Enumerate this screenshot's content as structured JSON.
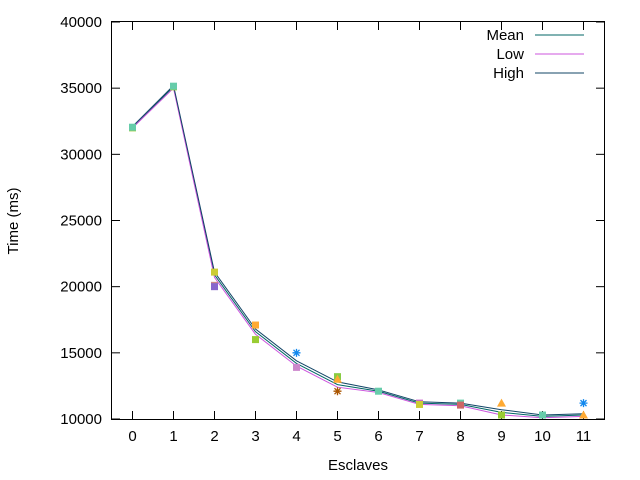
{
  "chart_data": {
    "type": "line",
    "xlabel": "Esclaves",
    "ylabel": "Time (ms)",
    "xlim": [
      -0.5,
      11.5
    ],
    "ylim": [
      10000,
      40000
    ],
    "x_ticks": [
      0,
      1,
      2,
      3,
      4,
      5,
      6,
      7,
      8,
      9,
      10,
      11
    ],
    "y_ticks": [
      10000,
      15000,
      20000,
      25000,
      30000,
      35000,
      40000
    ],
    "legend_position": "top-right",
    "grid": false,
    "series": [
      {
        "name": "Mean",
        "color": "#006666",
        "x": [
          0,
          1,
          2,
          3,
          4,
          5,
          6,
          7,
          8,
          9,
          10,
          11
        ],
        "y": [
          32000,
          35100,
          20900,
          16600,
          14200,
          12600,
          12100,
          11200,
          11100,
          10500,
          10200,
          10300
        ]
      },
      {
        "name": "Low",
        "color": "#cc55dd",
        "x": [
          0,
          1,
          2,
          3,
          4,
          5,
          6,
          7,
          8,
          9,
          10,
          11
        ],
        "y": [
          32000,
          35000,
          20700,
          16400,
          14000,
          12400,
          12000,
          11100,
          11000,
          10300,
          10100,
          10200
        ]
      },
      {
        "name": "High",
        "color": "#114466",
        "x": [
          0,
          1,
          2,
          3,
          4,
          5,
          6,
          7,
          8,
          9,
          10,
          11
        ],
        "y": [
          32100,
          35200,
          21100,
          16800,
          14400,
          12800,
          12200,
          11300,
          11200,
          10700,
          10300,
          10400
        ]
      }
    ],
    "points": [
      {
        "x": 0,
        "y": 32000,
        "color": "#99cc33",
        "shape": "square"
      },
      {
        "x": 0,
        "y": 32050,
        "color": "#66ccaa",
        "shape": "square"
      },
      {
        "x": 1,
        "y": 35100,
        "color": "#99cc33",
        "shape": "square"
      },
      {
        "x": 1,
        "y": 35150,
        "color": "#66ccaa",
        "shape": "square"
      },
      {
        "x": 2,
        "y": 21100,
        "color": "#cccc33",
        "shape": "square"
      },
      {
        "x": 2,
        "y": 20100,
        "color": "#cc8888",
        "shape": "square"
      },
      {
        "x": 2,
        "y": 20000,
        "color": "#8866cc",
        "shape": "square"
      },
      {
        "x": 3,
        "y": 17100,
        "color": "#ffaa33",
        "shape": "square"
      },
      {
        "x": 3,
        "y": 16000,
        "color": "#99cc33",
        "shape": "square"
      },
      {
        "x": 4,
        "y": 15000,
        "color": "#1188ee",
        "shape": "star"
      },
      {
        "x": 4,
        "y": 13900,
        "color": "#cc88cc",
        "shape": "square"
      },
      {
        "x": 5,
        "y": 13200,
        "color": "#88cc44",
        "shape": "square"
      },
      {
        "x": 5,
        "y": 13000,
        "color": "#ffaa33",
        "shape": "triangle"
      },
      {
        "x": 5,
        "y": 12100,
        "color": "#aa5500",
        "shape": "star"
      },
      {
        "x": 6,
        "y": 12100,
        "color": "#66ccaa",
        "shape": "square"
      },
      {
        "x": 7,
        "y": 11200,
        "color": "#cc66cc",
        "shape": "square"
      },
      {
        "x": 7,
        "y": 11100,
        "color": "#cccc33",
        "shape": "square"
      },
      {
        "x": 8,
        "y": 11200,
        "color": "#66ccaa",
        "shape": "square"
      },
      {
        "x": 8,
        "y": 11050,
        "color": "#cc6666",
        "shape": "square"
      },
      {
        "x": 9,
        "y": 11200,
        "color": "#ffaa33",
        "shape": "triangle"
      },
      {
        "x": 9,
        "y": 10300,
        "color": "#99cc33",
        "shape": "square"
      },
      {
        "x": 10,
        "y": 10300,
        "color": "#66ccaa",
        "shape": "square"
      },
      {
        "x": 11,
        "y": 11200,
        "color": "#1188ee",
        "shape": "star"
      },
      {
        "x": 11,
        "y": 10300,
        "color": "#ffaa33",
        "shape": "triangle"
      }
    ]
  }
}
